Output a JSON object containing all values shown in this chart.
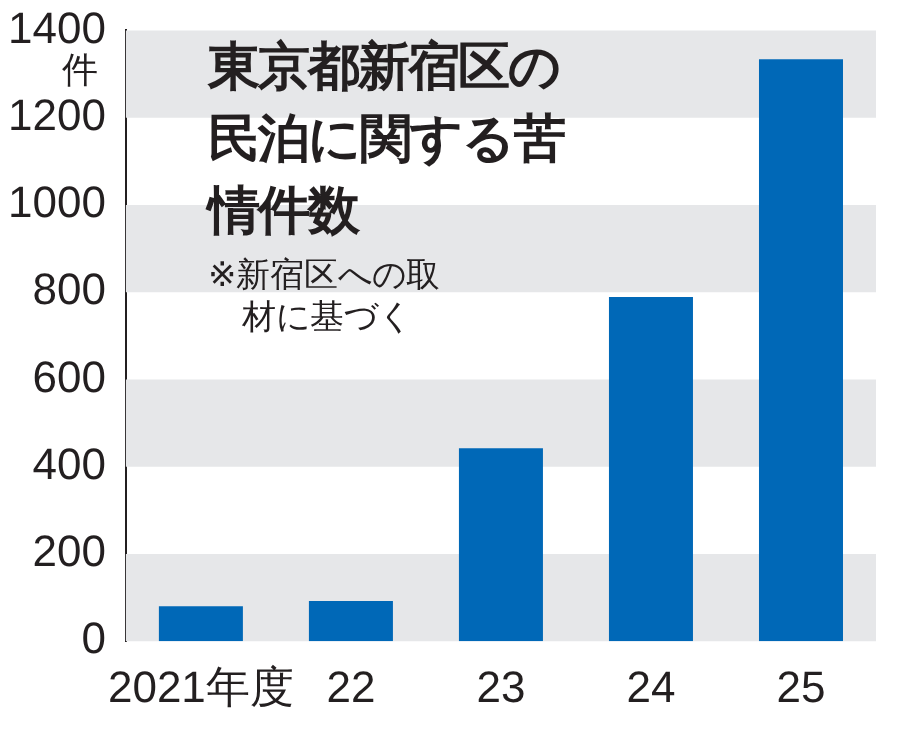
{
  "chart_data": {
    "type": "bar",
    "title": "東京都新宿区の民泊に関する苦情件数",
    "ylabel": "件",
    "annotations": [
      "※新宿区への取材に基づく"
    ],
    "categories": [
      "2021年度",
      "22",
      "23",
      "24",
      "25"
    ],
    "values": [
      80,
      92,
      442,
      789,
      1334
    ],
    "color": "#0068b7",
    "ylim": [
      0,
      1400
    ],
    "yticks": [
      0,
      200,
      400,
      600,
      800,
      1000,
      1200,
      1400
    ],
    "grid": false,
    "legend": false,
    "bands": [
      {
        "axis": "y",
        "from": 0,
        "to": 200,
        "color": "#e6e7e9"
      },
      {
        "axis": "y",
        "from": 400,
        "to": 600,
        "color": "#e6e7e9"
      },
      {
        "axis": "y",
        "from": 800,
        "to": 1000,
        "color": "#e6e7e9"
      },
      {
        "axis": "y",
        "from": 1200,
        "to": 1400,
        "color": "#e6e7e9"
      }
    ]
  }
}
